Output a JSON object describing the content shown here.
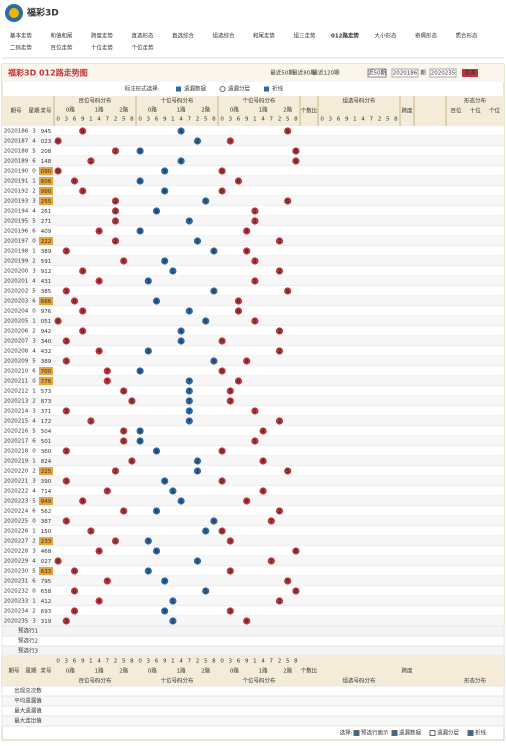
{
  "header": {
    "title": "福彩3D"
  },
  "nav": [
    "基本走势",
    "和值和尾",
    "跨度走势",
    "直选形态",
    "直选综合",
    "组选综合",
    "和尾走势",
    "组三走势",
    "012路走势",
    "大小形态",
    "奇偶形态",
    "质合形态",
    "二码走势",
    "百位走势",
    "十位走势",
    "个位走势"
  ],
  "panel": {
    "title": "福彩3D 012路走势图",
    "recent": [
      "最近50期",
      "最近80期",
      "最近120期"
    ],
    "select": "近50期",
    "from": "2020186",
    "period": "期",
    "to": "2020235",
    "query": "查询"
  },
  "options": {
    "label": "标注形式选择:",
    "items": [
      "遗漏数据",
      "遗漏分层",
      "折线"
    ]
  },
  "table": {
    "columns": {
      "issue": "期号",
      "week": "星期",
      "number": "奖号",
      "groups": [
        "百位号码分布",
        "十位号码分布",
        "个位号码分布"
      ],
      "routes": [
        "0路",
        "1路",
        "2路"
      ],
      "digit_order": [
        0,
        3,
        6,
        9,
        1,
        4,
        7,
        2,
        5,
        8
      ],
      "ratio": "个数比",
      "group_dist": "组选号码分布",
      "span": "跨度",
      "shape": "形态分布",
      "positions": [
        "百位",
        "十位",
        "个位"
      ]
    },
    "rows": [
      {
        "issue": 2020186,
        "week": 3,
        "digits": [
          9,
          4,
          5
        ]
      },
      {
        "issue": 2020187,
        "week": 4,
        "digits": [
          0,
          2,
          3
        ]
      },
      {
        "issue": 2020188,
        "week": 5,
        "digits": [
          2,
          0,
          8
        ]
      },
      {
        "issue": 2020189,
        "week": 6,
        "digits": [
          1,
          4,
          8
        ]
      },
      {
        "issue": 2020190,
        "week": 0,
        "digits": [
          0,
          9,
          0
        ]
      },
      {
        "issue": 2020191,
        "week": 1,
        "digits": [
          6,
          0,
          6
        ]
      },
      {
        "issue": 2020192,
        "week": 2,
        "digits": [
          9,
          9,
          0
        ]
      },
      {
        "issue": 2020193,
        "week": 3,
        "digits": [
          2,
          5,
          5
        ]
      },
      {
        "issue": 2020194,
        "week": 4,
        "digits": [
          2,
          6,
          1
        ]
      },
      {
        "issue": 2020195,
        "week": 5,
        "digits": [
          2,
          7,
          1
        ]
      },
      {
        "issue": 2020196,
        "week": 6,
        "digits": [
          4,
          0,
          9
        ]
      },
      {
        "issue": 2020197,
        "week": 0,
        "digits": [
          2,
          2,
          2
        ]
      },
      {
        "issue": 2020198,
        "week": 1,
        "digits": [
          3,
          8,
          9
        ]
      },
      {
        "issue": 2020199,
        "week": 2,
        "digits": [
          5,
          9,
          1
        ]
      },
      {
        "issue": 2020200,
        "week": 3,
        "digits": [
          9,
          1,
          2
        ]
      },
      {
        "issue": 2020201,
        "week": 4,
        "digits": [
          4,
          3,
          1
        ]
      },
      {
        "issue": 2020202,
        "week": 5,
        "digits": [
          3,
          8,
          5
        ]
      },
      {
        "issue": 2020203,
        "week": 6,
        "digits": [
          6,
          6,
          6
        ]
      },
      {
        "issue": 2020204,
        "week": 0,
        "digits": [
          9,
          7,
          6
        ]
      },
      {
        "issue": 2020205,
        "week": 1,
        "digits": [
          0,
          5,
          1
        ]
      },
      {
        "issue": 2020206,
        "week": 2,
        "digits": [
          9,
          4,
          2
        ]
      },
      {
        "issue": 2020207,
        "week": 3,
        "digits": [
          3,
          4,
          0
        ]
      },
      {
        "issue": 2020208,
        "week": 4,
        "digits": [
          4,
          3,
          2
        ]
      },
      {
        "issue": 2020209,
        "week": 5,
        "digits": [
          3,
          8,
          9
        ]
      },
      {
        "issue": 2020210,
        "week": 6,
        "digits": [
          7,
          0,
          0
        ]
      },
      {
        "issue": 2020211,
        "week": 0,
        "digits": [
          7,
          7,
          6
        ]
      },
      {
        "issue": 2020212,
        "week": 1,
        "digits": [
          5,
          7,
          3
        ]
      },
      {
        "issue": 2020213,
        "week": 2,
        "digits": [
          8,
          7,
          3
        ]
      },
      {
        "issue": 2020214,
        "week": 3,
        "digits": [
          3,
          7,
          1
        ]
      },
      {
        "issue": 2020215,
        "week": 4,
        "digits": [
          1,
          7,
          2
        ]
      },
      {
        "issue": 2020216,
        "week": 5,
        "digits": [
          5,
          0,
          4
        ]
      },
      {
        "issue": 2020217,
        "week": 6,
        "digits": [
          5,
          0,
          1
        ]
      },
      {
        "issue": 2020218,
        "week": 0,
        "digits": [
          3,
          6,
          0
        ]
      },
      {
        "issue": 2020219,
        "week": 1,
        "digits": [
          8,
          2,
          4
        ]
      },
      {
        "issue": 2020220,
        "week": 2,
        "digits": [
          2,
          2,
          5
        ]
      },
      {
        "issue": 2020221,
        "week": 3,
        "digits": [
          3,
          9,
          0
        ]
      },
      {
        "issue": 2020222,
        "week": 4,
        "digits": [
          7,
          1,
          4
        ]
      },
      {
        "issue": 2020223,
        "week": 5,
        "digits": [
          9,
          4,
          9
        ]
      },
      {
        "issue": 2020224,
        "week": 6,
        "digits": [
          5,
          6,
          2
        ]
      },
      {
        "issue": 2020225,
        "week": 0,
        "digits": [
          3,
          8,
          7
        ]
      },
      {
        "issue": 2020226,
        "week": 1,
        "digits": [
          1,
          5,
          0
        ]
      },
      {
        "issue": 2020227,
        "week": 2,
        "digits": [
          2,
          3,
          3
        ]
      },
      {
        "issue": 2020228,
        "week": 3,
        "digits": [
          4,
          6,
          8
        ]
      },
      {
        "issue": 2020229,
        "week": 4,
        "digits": [
          0,
          2,
          7
        ]
      },
      {
        "issue": 2020230,
        "week": 5,
        "digits": [
          6,
          3,
          3
        ]
      },
      {
        "issue": 2020231,
        "week": 6,
        "digits": [
          7,
          9,
          5
        ]
      },
      {
        "issue": 2020232,
        "week": 0,
        "digits": [
          6,
          5,
          8
        ]
      },
      {
        "issue": 2020233,
        "week": 1,
        "digits": [
          4,
          1,
          2
        ]
      },
      {
        "issue": 2020234,
        "week": 2,
        "digits": [
          6,
          9,
          3
        ]
      },
      {
        "issue": 2020235,
        "week": 3,
        "digits": [
          3,
          1,
          9
        ]
      }
    ],
    "preselect": [
      "预选行1",
      "预选行2",
      "预选行3"
    ],
    "stats": [
      "出现总次数",
      "平均遗漏值",
      "最大遗漏值",
      "最大连出值"
    ]
  },
  "legend": {
    "label": "选择:",
    "items": [
      "预选行面示",
      "遗漏数据",
      "遗漏分层",
      "折线"
    ]
  }
}
